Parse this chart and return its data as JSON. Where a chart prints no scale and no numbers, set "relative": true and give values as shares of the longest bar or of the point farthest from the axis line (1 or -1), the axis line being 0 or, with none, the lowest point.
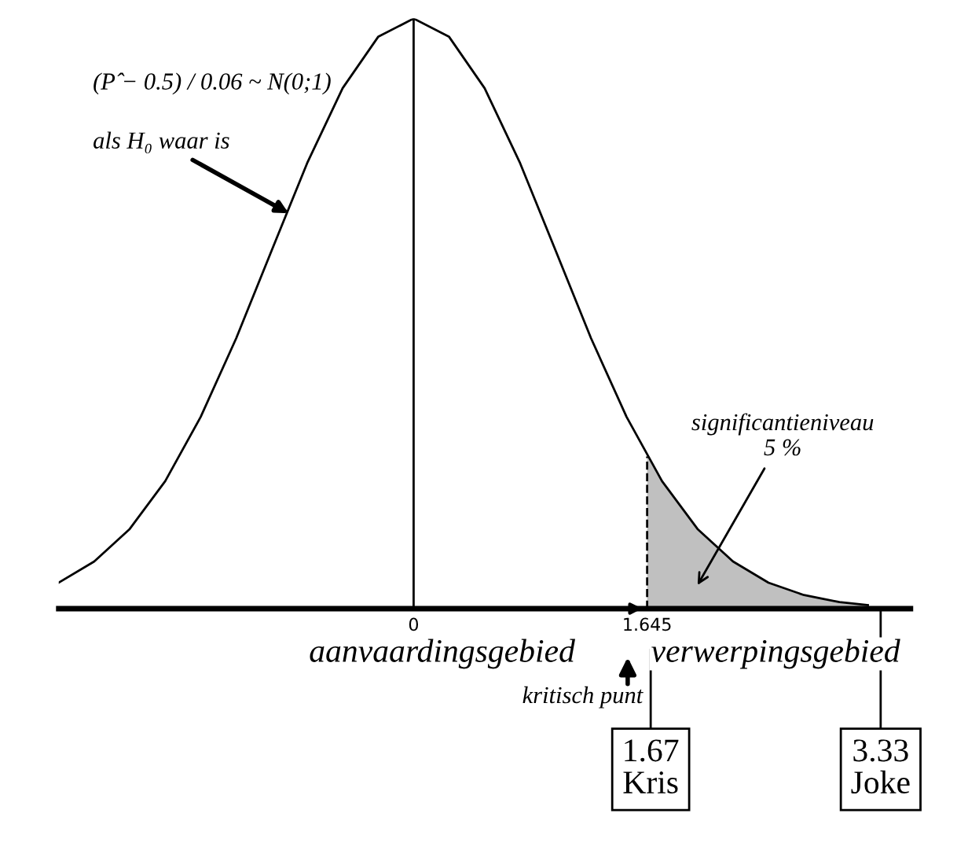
{
  "chart_data": {
    "type": "line",
    "relative": true,
    "grid": false,
    "legend": false,
    "xlim": [
      -2.5,
      3.5
    ],
    "xticks": [
      0,
      1.645
    ],
    "series": [
      {
        "color": "#000000",
        "x": [
          -2.5,
          -2.25,
          -2,
          -1.75,
          -1.5,
          -1.25,
          -1,
          -0.75,
          -0.5,
          -0.25,
          0,
          0.25,
          0.5,
          0.75,
          1,
          1.25,
          1.5,
          1.75,
          2,
          2.25,
          2.5,
          2.75,
          3,
          3.2
        ],
        "values": [
          0.044,
          0.08,
          0.135,
          0.216,
          0.325,
          0.458,
          0.607,
          0.755,
          0.882,
          0.969,
          1,
          0.969,
          0.882,
          0.755,
          0.607,
          0.458,
          0.325,
          0.216,
          0.135,
          0.08,
          0.044,
          0.023,
          0.011,
          0.006
        ]
      },
      {
        "type": "area",
        "color": "#c0c0c0",
        "x": [
          1.645,
          1.75,
          2,
          2.25,
          2.5,
          2.75,
          3,
          3.2
        ],
        "values": [
          0.258,
          0.216,
          0.135,
          0.08,
          0.044,
          0.023,
          0.011,
          0.006
        ]
      }
    ],
    "ref_lines": [
      {
        "axis": "x",
        "value": 0
      }
    ],
    "annotations": [
      "(P̂ − 0.5) / 0.06 ~ N(0;1)",
      "als H₀ waar is",
      "significantieniveau\n5 %",
      "aanvaardingsgebied",
      "verwerpingsgebied",
      "kritisch punt",
      "1.67\nKris",
      "3.33\nJoke"
    ]
  }
}
